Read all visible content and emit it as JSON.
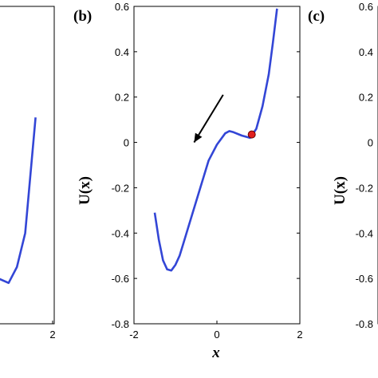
{
  "chart_data": [
    {
      "type": "line",
      "panel": "",
      "partial": "left",
      "xlim": [
        -2,
        2
      ],
      "ylim": [
        -0.8,
        0.6
      ],
      "x_ticks": [],
      "x_tick_labels": [
        "2"
      ],
      "series": [
        {
          "color": "#3346d6",
          "x": [
            0.65,
            0.9,
            1.1,
            1.3,
            1.55
          ],
          "y": [
            -0.6,
            -0.62,
            -0.55,
            -0.4,
            0.11
          ]
        }
      ]
    },
    {
      "type": "line",
      "panel": "(b)",
      "xlim": [
        -2,
        2
      ],
      "ylim": [
        -0.8,
        0.6
      ],
      "x_ticks": [
        -2,
        0,
        2
      ],
      "x_tick_labels": [
        "-2",
        "0",
        "2"
      ],
      "y_ticks": [
        -0.8,
        -0.6,
        -0.4,
        -0.2,
        0,
        0.2,
        0.4,
        0.6
      ],
      "y_tick_labels": [
        "-0.8",
        "-0.6",
        "-0.4",
        "-0.2",
        "0",
        "0.2",
        "0.4",
        "0.6"
      ],
      "xlabel": "x",
      "ylabel": "U(x)",
      "series": [
        {
          "color": "#3346d6",
          "x": [
            -1.5,
            -1.4,
            -1.3,
            -1.2,
            -1.1,
            -1.0,
            -0.9,
            -0.8,
            -0.6,
            -0.4,
            -0.2,
            0.0,
            0.2,
            0.3,
            0.4,
            0.6,
            0.8,
            0.95,
            1.1,
            1.25,
            1.35,
            1.45
          ],
          "y": [
            -0.31,
            -0.43,
            -0.52,
            -0.56,
            -0.565,
            -0.54,
            -0.5,
            -0.44,
            -0.32,
            -0.2,
            -0.08,
            -0.01,
            0.04,
            0.05,
            0.045,
            0.03,
            0.02,
            0.06,
            0.16,
            0.3,
            0.44,
            0.59
          ]
        }
      ],
      "marker": {
        "x": 0.84,
        "y": 0.035,
        "color": "#e02020"
      },
      "arrow": {
        "from": [
          0.15,
          0.21
        ],
        "to": [
          -0.55,
          0.0
        ]
      }
    },
    {
      "type": "line",
      "panel": "(c)",
      "partial": "right",
      "ylabel": "U(x)",
      "y_tick_labels": [
        "0.6",
        "0.4",
        "0.2",
        "0",
        "-0.2",
        "-0.4",
        "-0.6",
        "-0.8"
      ]
    }
  ]
}
